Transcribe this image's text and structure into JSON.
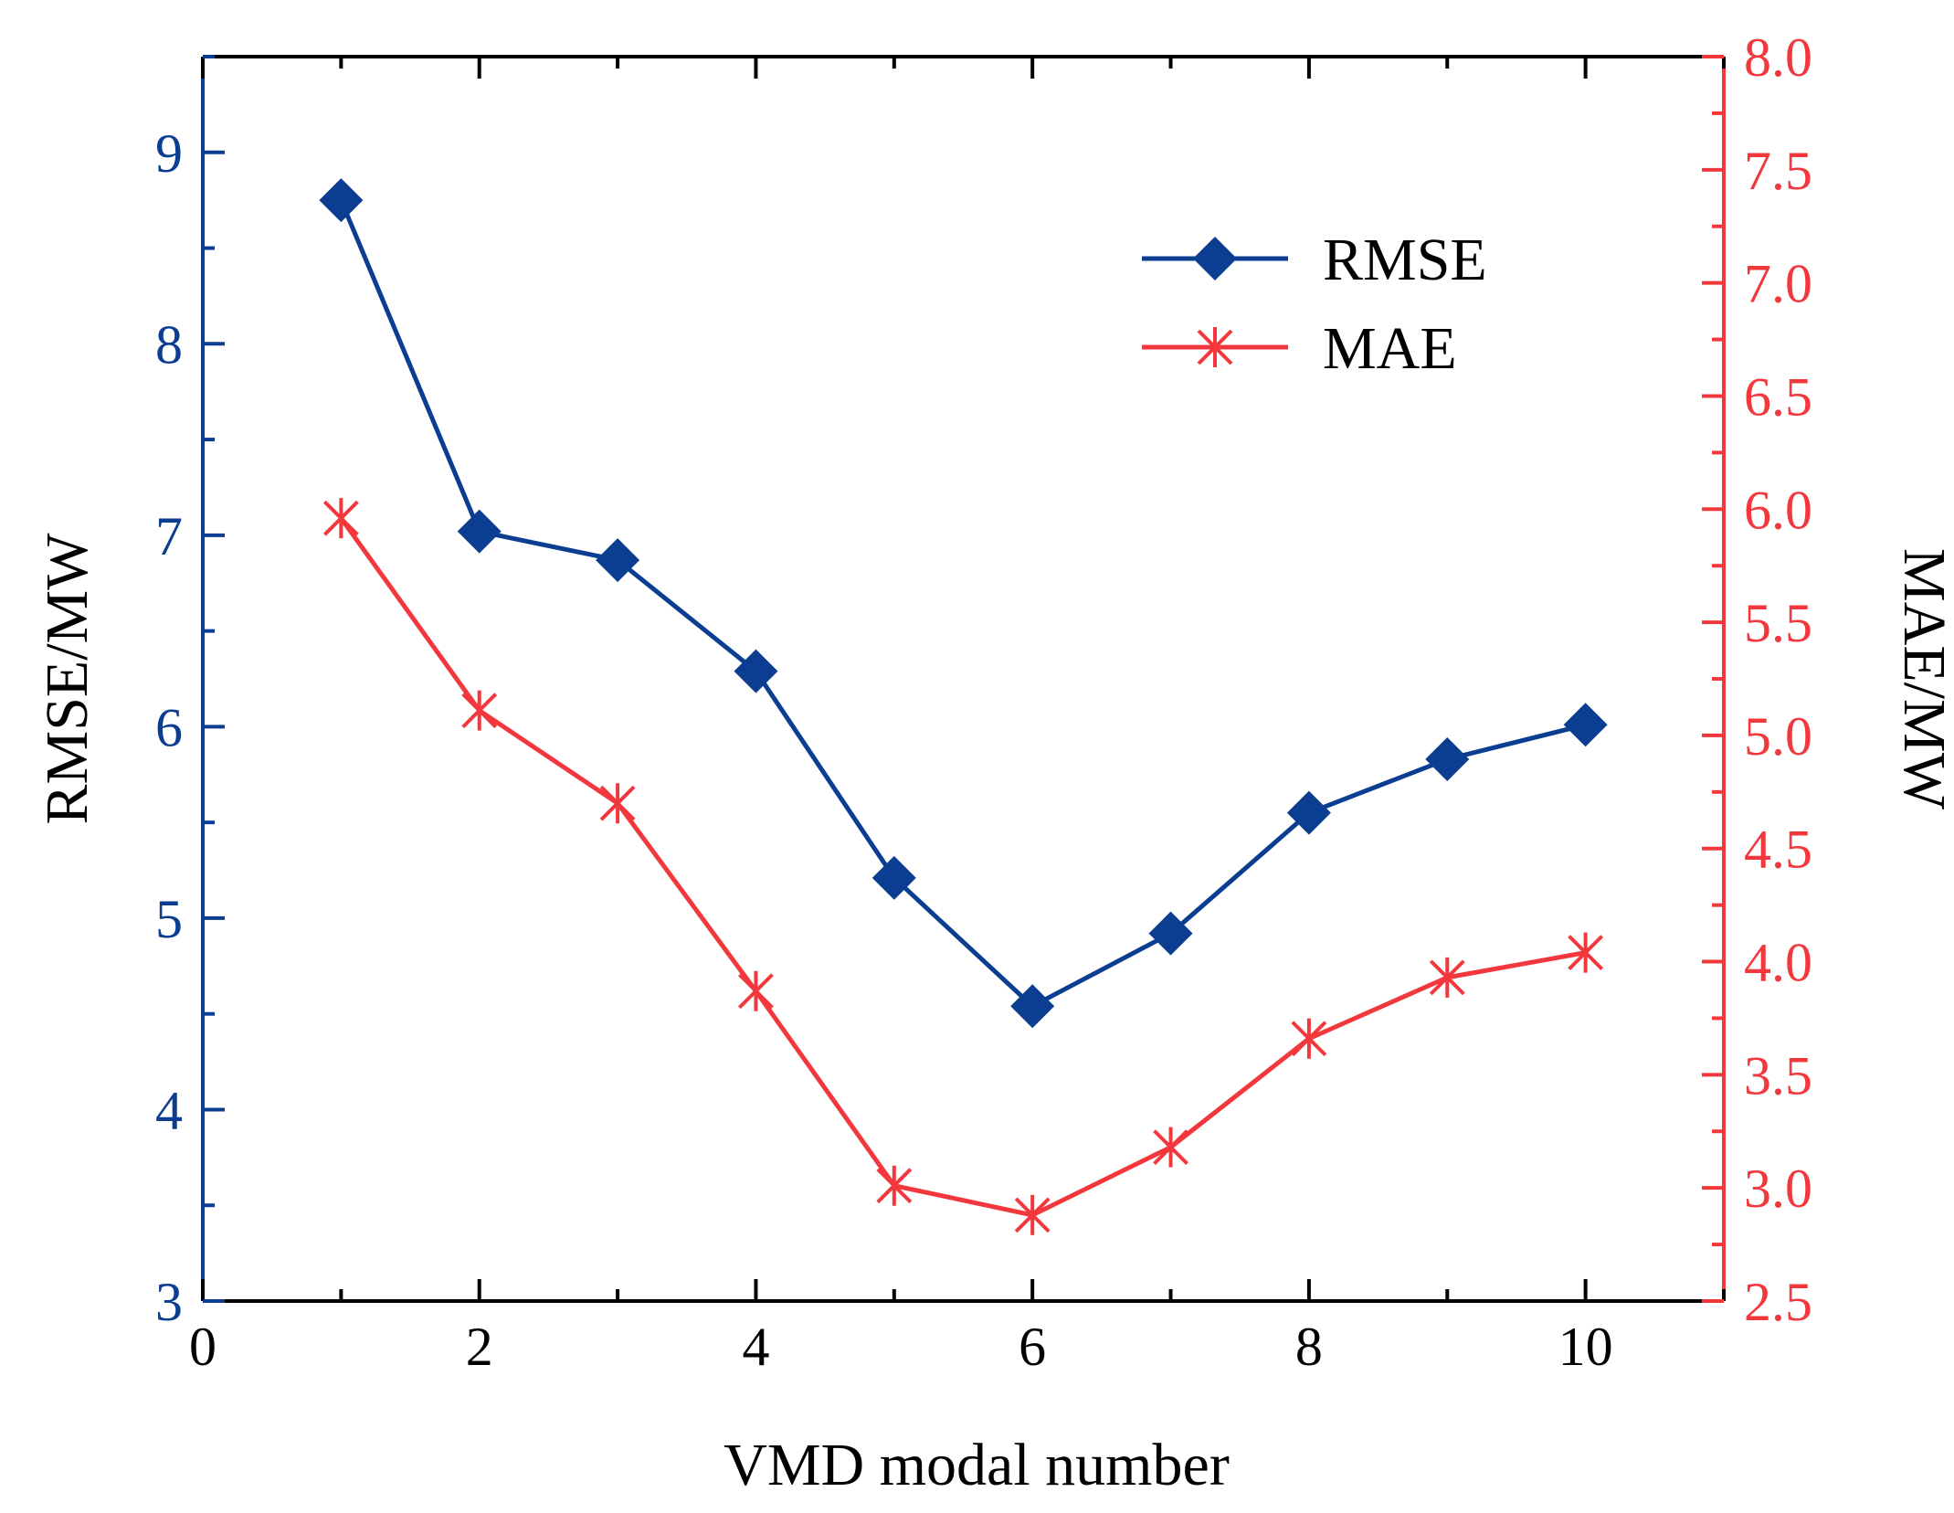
{
  "chart_data": {
    "type": "line",
    "xlabel": "VMD modal number",
    "ylabel": "RMSE/MW",
    "y2label": "MAE/MW",
    "xlim": [
      0,
      11
    ],
    "ylim": [
      3,
      9.5
    ],
    "y2lim": [
      2.5,
      8.0
    ],
    "x_ticks": [
      0,
      2,
      4,
      6,
      8,
      10
    ],
    "y_ticks": [
      3,
      4,
      5,
      6,
      7,
      8,
      9
    ],
    "y2_ticks": [
      2.5,
      3.0,
      3.5,
      4.0,
      4.5,
      5.0,
      5.5,
      6.0,
      6.5,
      7.0,
      7.5,
      8.0
    ],
    "x_tick_labels": [
      "0",
      "2",
      "4",
      "6",
      "8",
      "10"
    ],
    "y_tick_labels": [
      "3",
      "4",
      "5",
      "6",
      "7",
      "8",
      "9"
    ],
    "y2_tick_labels": [
      "2.5",
      "3.0",
      "3.5",
      "4.0",
      "4.5",
      "5.0",
      "5.5",
      "6.0",
      "6.5",
      "7.0",
      "7.5",
      "8.0"
    ],
    "x": [
      1,
      2,
      3,
      4,
      5,
      6,
      7,
      8,
      9,
      10
    ],
    "series": [
      {
        "name": "RMSE",
        "axis": "left",
        "marker": "diamond",
        "color": "#0b3d91",
        "values": [
          8.75,
          7.02,
          6.87,
          6.29,
          5.21,
          4.54,
          4.92,
          5.55,
          5.83,
          6.01
        ]
      },
      {
        "name": "MAE",
        "axis": "right",
        "marker": "asterisk",
        "color": "#f2383d",
        "values": [
          5.96,
          5.11,
          4.7,
          3.87,
          3.01,
          2.88,
          3.18,
          3.66,
          3.93,
          4.04
        ]
      }
    ],
    "legend_position": "top-right",
    "grid": false,
    "colors": {
      "left_axis": "#0b3d91",
      "right_axis": "#f2383d",
      "frame": "#000000"
    }
  }
}
